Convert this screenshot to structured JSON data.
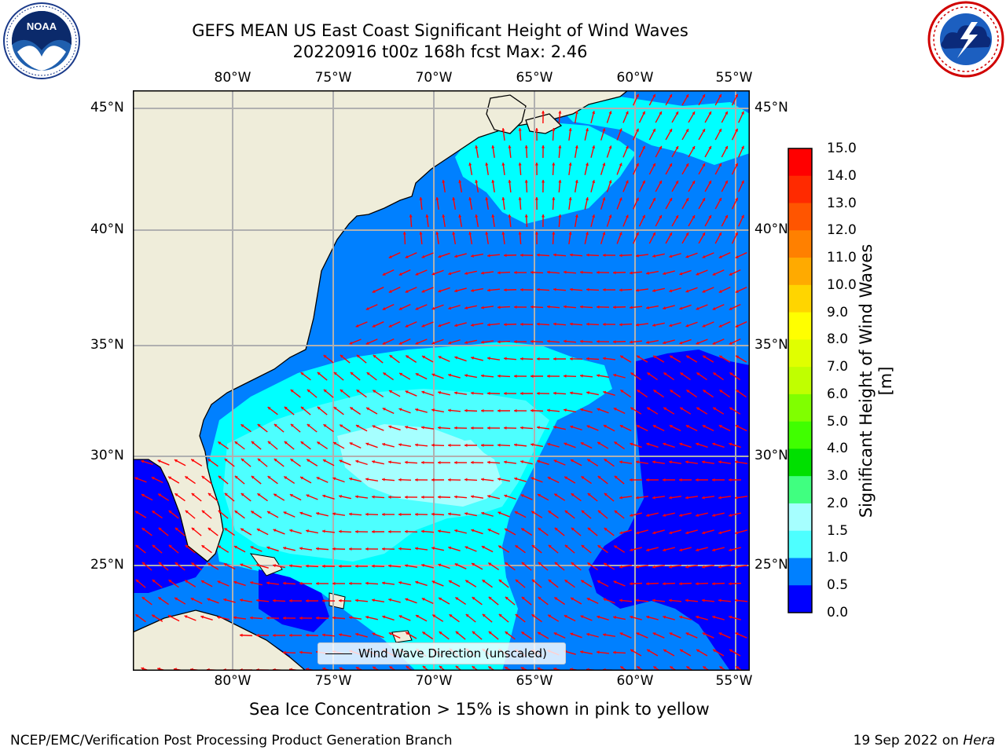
{
  "title": {
    "line1": "GEFS MEAN US East Coast Significant Height of Wind Waves",
    "line2": "20220916 t00z 168h fcst   Max: 2.46"
  },
  "logos": {
    "left": {
      "text": "NOAA",
      "ring_top": "NATIONAL OCEANIC AND ATMOSPHERIC ADMINISTRATION",
      "ring_bottom": "U.S. DEPARTMENT OF COMMERCE"
    },
    "right": {
      "ring_text": "NATIONAL WEATHER SERVICE"
    }
  },
  "map": {
    "lon_labels": [
      "80°W",
      "75°W",
      "70°W",
      "65°W",
      "60°W",
      "55°W"
    ],
    "lat_labels": [
      "45°N",
      "40°N",
      "35°N",
      "30°N",
      "25°N"
    ],
    "legend_label": "Wind Wave Direction (unscaled)",
    "land_color": "#efedda",
    "arrow_color": "#ff0000",
    "grid": true
  },
  "colorbar": {
    "title": "Significant Height of Wind Waves [m]",
    "ticks": [
      "15.0",
      "14.0",
      "13.0",
      "12.0",
      "11.0",
      "10.0",
      "9.0",
      "8.0",
      "7.0",
      "6.0",
      "5.0",
      "4.0",
      "3.0",
      "2.0",
      "1.5",
      "1.0",
      "0.5",
      "0.0"
    ],
    "colors": [
      "#ff0000",
      "#ff2a00",
      "#ff5500",
      "#ff8000",
      "#ffaa00",
      "#ffd500",
      "#ffff00",
      "#e0ff00",
      "#c0ff00",
      "#80ff00",
      "#40ff00",
      "#00e000",
      "#40ff80",
      "#a6ffff",
      "#4dffff",
      "#00ffff",
      "#0080ff",
      "#0000ff"
    ]
  },
  "caption": "Sea Ice Concentration > 15% is shown in pink to yellow",
  "footer": {
    "left": "NCEP/EMC/Verification Post Processing Product Generation Branch",
    "right_prefix": "19 Sep 2022 on ",
    "right_host": "Hera"
  }
}
